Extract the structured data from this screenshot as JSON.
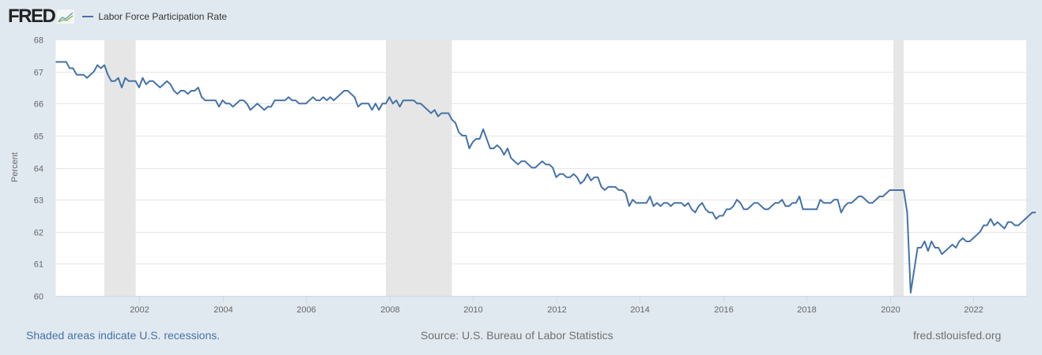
{
  "header": {
    "logo": "FRED",
    "legend_label": "Labor Force Participation Rate",
    "series_color": "#4572a7"
  },
  "footer": {
    "recessions_note": "Shaded areas indicate U.S. recessions.",
    "source": "Source: U.S. Bureau of Labor Statistics",
    "site": "fred.stlouisfed.org"
  },
  "chart_data": {
    "type": "line",
    "title": "Labor Force Participation Rate",
    "xlabel": "",
    "ylabel": "Percent",
    "ylim": [
      60,
      68
    ],
    "yticks": [
      60,
      61,
      62,
      63,
      64,
      65,
      66,
      67,
      68
    ],
    "xticks": [
      "2002",
      "2004",
      "2006",
      "2008",
      "2010",
      "2012",
      "2014",
      "2016",
      "2018",
      "2020",
      "2022"
    ],
    "x_start": "2000-01",
    "x_end": "2023-04",
    "frequency": "monthly",
    "grid": true,
    "legend_position": "top-left",
    "recessions": [
      {
        "start": "2001-03",
        "end": "2001-11"
      },
      {
        "start": "2007-12",
        "end": "2009-06"
      },
      {
        "start": "2020-02",
        "end": "2020-04"
      }
    ],
    "series": [
      {
        "name": "Labor Force Participation Rate",
        "color": "#4572a7",
        "values": [
          67.3,
          67.3,
          67.3,
          67.3,
          67.1,
          67.1,
          66.9,
          66.9,
          66.9,
          66.8,
          66.9,
          67.0,
          67.2,
          67.1,
          67.2,
          66.9,
          66.7,
          66.7,
          66.8,
          66.5,
          66.8,
          66.7,
          66.7,
          66.7,
          66.5,
          66.8,
          66.6,
          66.7,
          66.7,
          66.6,
          66.5,
          66.6,
          66.7,
          66.6,
          66.4,
          66.3,
          66.4,
          66.4,
          66.3,
          66.4,
          66.4,
          66.5,
          66.2,
          66.1,
          66.1,
          66.1,
          66.1,
          65.9,
          66.1,
          66.0,
          66.0,
          65.9,
          66.0,
          66.1,
          66.1,
          66.0,
          65.8,
          65.9,
          66.0,
          65.9,
          65.8,
          65.9,
          65.9,
          66.1,
          66.1,
          66.1,
          66.1,
          66.2,
          66.1,
          66.1,
          66.0,
          66.0,
          66.0,
          66.1,
          66.2,
          66.1,
          66.1,
          66.2,
          66.1,
          66.2,
          66.1,
          66.2,
          66.3,
          66.4,
          66.4,
          66.3,
          66.2,
          65.9,
          66.0,
          66.0,
          66.0,
          65.8,
          66.0,
          65.8,
          66.0,
          66.0,
          66.2,
          66.0,
          66.1,
          65.9,
          66.1,
          66.1,
          66.1,
          66.1,
          66.0,
          66.0,
          65.9,
          65.8,
          65.7,
          65.8,
          65.6,
          65.7,
          65.7,
          65.7,
          65.5,
          65.4,
          65.1,
          65.0,
          65.0,
          64.6,
          64.8,
          64.9,
          64.9,
          65.2,
          64.9,
          64.6,
          64.6,
          64.7,
          64.6,
          64.4,
          64.6,
          64.3,
          64.2,
          64.1,
          64.2,
          64.2,
          64.1,
          64.0,
          64.0,
          64.1,
          64.2,
          64.1,
          64.1,
          64.0,
          63.7,
          63.8,
          63.8,
          63.7,
          63.7,
          63.8,
          63.7,
          63.5,
          63.6,
          63.8,
          63.6,
          63.7,
          63.7,
          63.4,
          63.3,
          63.4,
          63.4,
          63.4,
          63.3,
          63.3,
          63.2,
          62.8,
          63.0,
          62.9,
          62.9,
          62.9,
          62.9,
          63.1,
          62.8,
          62.9,
          62.8,
          62.9,
          62.9,
          62.8,
          62.9,
          62.9,
          62.9,
          62.8,
          62.9,
          62.7,
          62.6,
          62.8,
          62.9,
          62.7,
          62.6,
          62.6,
          62.4,
          62.5,
          62.5,
          62.7,
          62.7,
          62.8,
          63.0,
          62.9,
          62.7,
          62.7,
          62.8,
          62.9,
          62.9,
          62.8,
          62.7,
          62.7,
          62.8,
          62.9,
          62.9,
          63.0,
          62.8,
          62.8,
          62.9,
          62.9,
          63.1,
          62.7,
          62.7,
          62.7,
          62.7,
          62.7,
          63.0,
          62.9,
          62.9,
          62.9,
          63.0,
          63.0,
          62.6,
          62.8,
          62.9,
          62.9,
          63.0,
          63.1,
          63.1,
          63.0,
          62.9,
          62.9,
          63.0,
          63.1,
          63.1,
          63.2,
          63.3,
          63.3,
          63.3,
          63.3,
          63.3,
          62.6,
          60.1,
          60.8,
          61.5,
          61.5,
          61.7,
          61.4,
          61.7,
          61.5,
          61.5,
          61.3,
          61.4,
          61.5,
          61.6,
          61.5,
          61.7,
          61.8,
          61.7,
          61.7,
          61.8,
          61.9,
          62.0,
          62.2,
          62.2,
          62.4,
          62.2,
          62.3,
          62.2,
          62.1,
          62.3,
          62.3,
          62.2,
          62.2,
          62.3,
          62.4,
          62.5,
          62.6,
          62.6
        ]
      }
    ]
  }
}
